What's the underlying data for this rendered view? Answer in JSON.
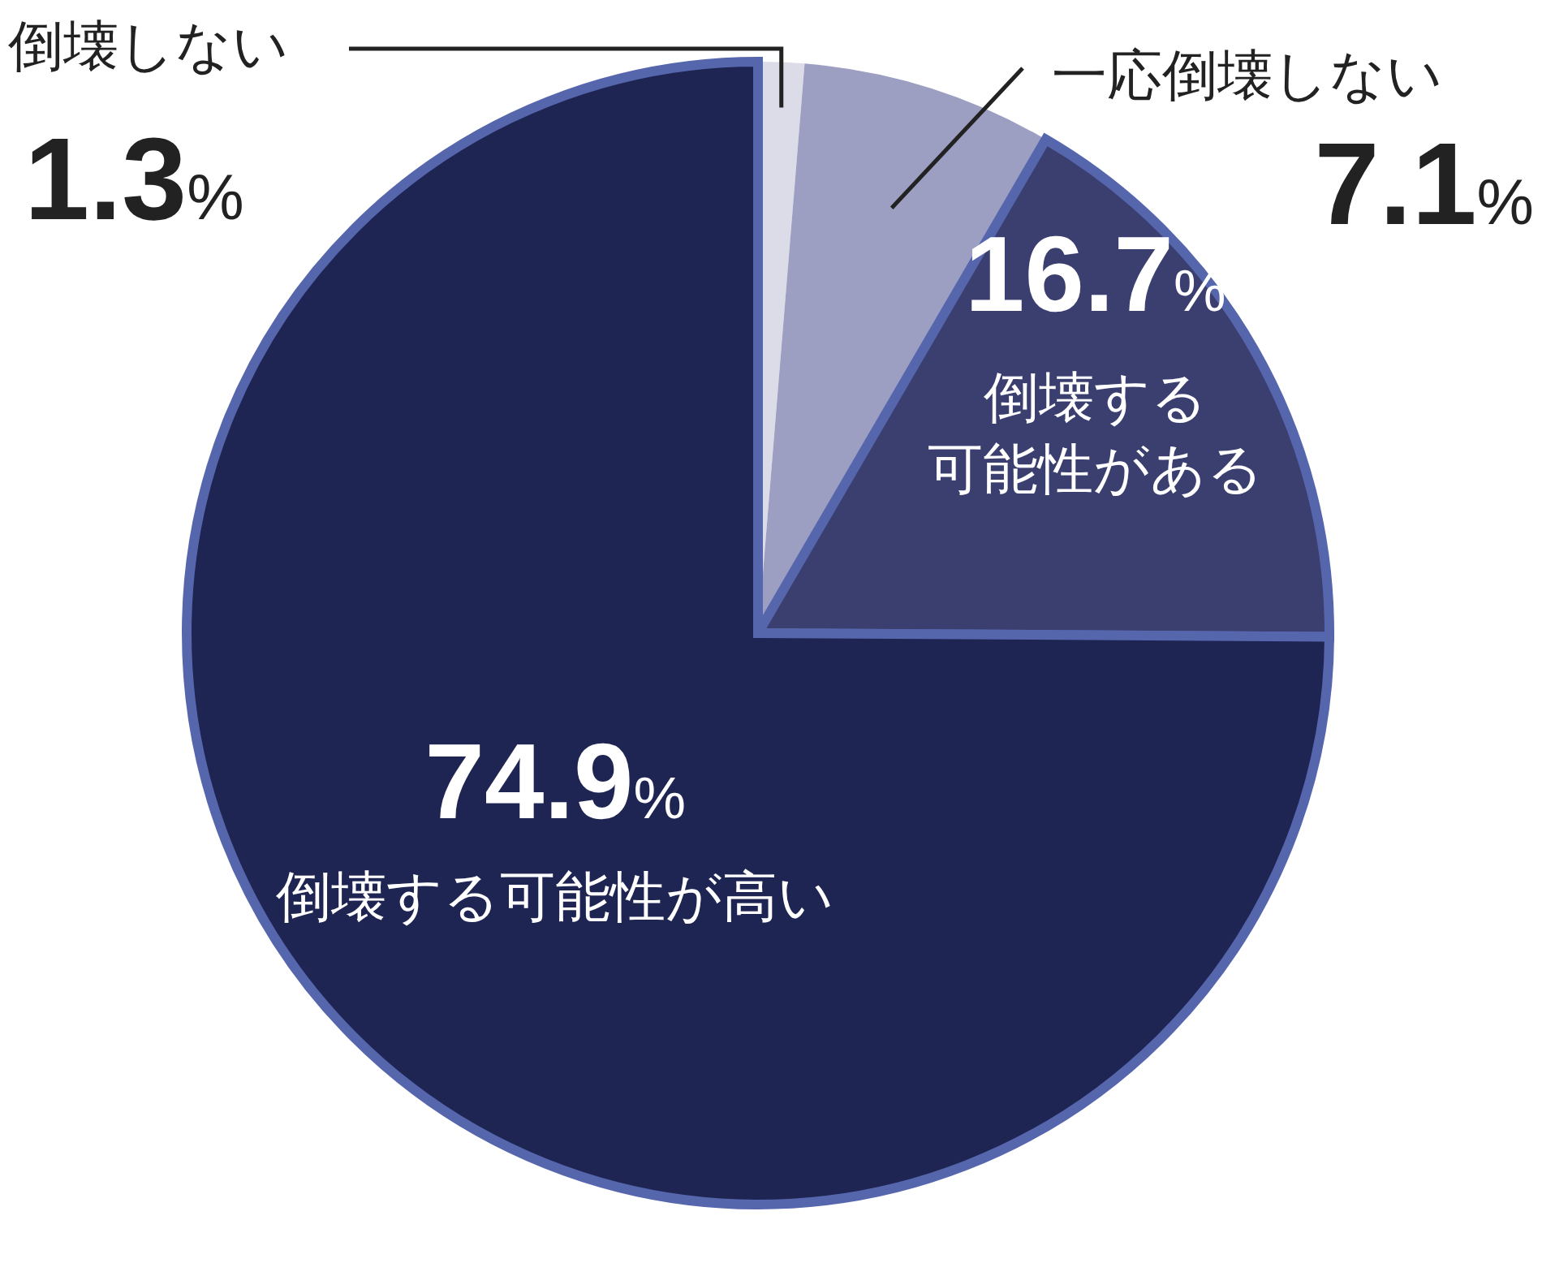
{
  "chart_data": {
    "type": "pie",
    "categories": [
      "倒壊しない",
      "一応倒壊しない",
      "倒壊する可能性がある",
      "倒壊する可能性が高い"
    ],
    "values": [
      1.3,
      7.1,
      16.7,
      74.9
    ],
    "colors": [
      "#dcdce8",
      "#9c9ec2",
      "#3b3f70",
      "#1f2553"
    ],
    "value_labels": [
      "1.3%",
      "7.1%",
      "16.7%",
      "74.9%"
    ]
  }
}
